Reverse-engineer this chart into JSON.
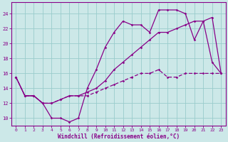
{
  "xlabel": "Windchill (Refroidissement éolien,°C)",
  "xlim": [
    -0.5,
    23.5
  ],
  "ylim": [
    9,
    25.5
  ],
  "yticks": [
    10,
    12,
    14,
    16,
    18,
    20,
    22,
    24
  ],
  "xticks": [
    0,
    1,
    2,
    3,
    4,
    5,
    6,
    7,
    8,
    9,
    10,
    11,
    12,
    13,
    14,
    15,
    16,
    17,
    18,
    19,
    20,
    21,
    22,
    23
  ],
  "bg_color": "#cce8e8",
  "line_color": "#880088",
  "grid_color": "#99cccc",
  "series1_x": [
    0,
    1,
    2,
    3,
    4,
    5,
    6,
    7,
    8,
    9,
    10,
    11,
    12,
    13,
    14,
    15,
    16,
    17,
    18,
    19,
    20,
    21,
    22,
    23
  ],
  "series1_y": [
    15.5,
    13.0,
    13.0,
    12.0,
    10.0,
    10.0,
    9.5,
    10.0,
    14.0,
    16.5,
    19.5,
    21.5,
    23.0,
    22.5,
    22.5,
    21.5,
    24.5,
    24.5,
    24.5,
    24.0,
    20.5,
    23.0,
    17.5,
    16.0
  ],
  "series2_x": [
    0,
    1,
    2,
    3,
    4,
    5,
    6,
    7,
    8,
    9,
    10,
    11,
    12,
    13,
    14,
    15,
    16,
    17,
    18,
    19,
    20,
    21,
    22,
    23
  ],
  "series2_y": [
    15.5,
    13.0,
    13.0,
    12.0,
    12.0,
    12.5,
    13.0,
    13.0,
    13.5,
    14.0,
    15.0,
    16.5,
    17.5,
    18.5,
    19.5,
    20.5,
    21.5,
    21.5,
    22.0,
    22.5,
    23.0,
    23.0,
    23.5,
    16.0
  ],
  "series3_x": [
    0,
    1,
    2,
    3,
    4,
    5,
    6,
    7,
    8,
    9,
    10,
    11,
    12,
    13,
    14,
    15,
    16,
    17,
    18,
    19,
    20,
    21,
    22,
    23
  ],
  "series3_y": [
    15.5,
    13.0,
    13.0,
    12.0,
    12.0,
    12.5,
    13.0,
    13.0,
    13.0,
    13.5,
    14.0,
    14.5,
    15.0,
    15.5,
    16.0,
    16.0,
    16.5,
    15.5,
    15.5,
    16.0,
    16.0,
    16.0,
    16.0,
    16.0
  ]
}
